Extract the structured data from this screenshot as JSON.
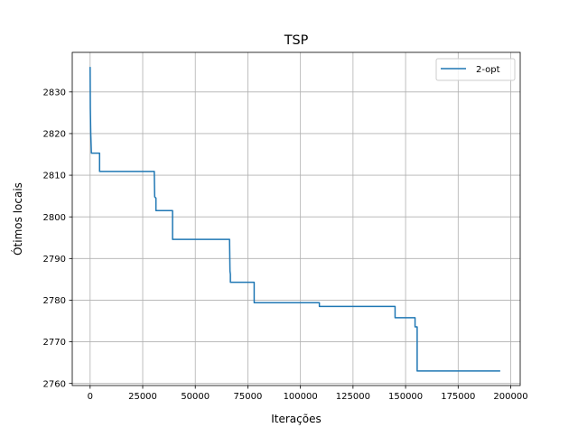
{
  "chart_data": {
    "type": "line",
    "title": "TSP",
    "xlabel": "Iterações",
    "ylabel": "Ótimos locais",
    "xlim": [
      -8500,
      204500
    ],
    "ylim": [
      2759.5,
      2839.5
    ],
    "xticks": [
      0,
      25000,
      50000,
      75000,
      100000,
      125000,
      150000,
      175000,
      200000
    ],
    "yticks": [
      2760,
      2770,
      2780,
      2790,
      2800,
      2810,
      2820,
      2830
    ],
    "grid": true,
    "legend_position": "top-right",
    "series": [
      {
        "name": "2-opt",
        "color": "#1f77b4",
        "x": [
          0,
          100,
          300,
          600,
          4500,
          4500,
          30500,
          30700,
          31300,
          31300,
          39200,
          39200,
          66300,
          66500,
          66700,
          66700,
          78000,
          78000,
          109000,
          109000,
          145000,
          145000,
          154500,
          154500,
          155500,
          155500,
          195000
        ],
        "y": [
          2836,
          2826,
          2820,
          2815.3,
          2815.3,
          2810.9,
          2810.9,
          2804.8,
          2804.5,
          2801.5,
          2801.5,
          2794.6,
          2794.6,
          2787,
          2786.2,
          2784.3,
          2784.3,
          2779.4,
          2779.4,
          2778.5,
          2778.5,
          2775.8,
          2775.8,
          2773.6,
          2773.6,
          2763,
          2763
        ]
      }
    ]
  }
}
